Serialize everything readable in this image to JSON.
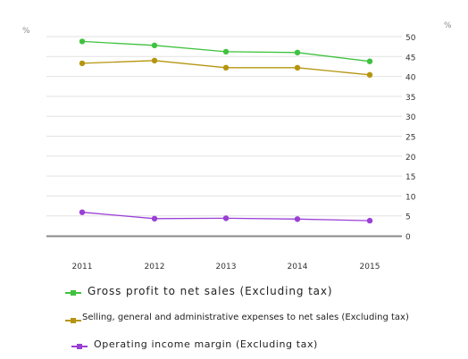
{
  "chart_data": {
    "type": "line",
    "x": [
      "2011",
      "2012",
      "2013",
      "2014",
      "2015"
    ],
    "y_unit_left": "%",
    "y_unit_right": "%",
    "ylim": [
      0,
      50
    ],
    "yticks": [
      0,
      5,
      10,
      15,
      20,
      25,
      30,
      35,
      40,
      45,
      50
    ],
    "y_axis_side": "right",
    "grid": true,
    "legend_position": "bottom",
    "series": [
      {
        "name": "Gross profit to net sales (Excluding tax)",
        "color": "#3fc23f",
        "values": [
          48.8,
          47.8,
          46.2,
          46.0,
          43.8
        ]
      },
      {
        "name": "Selling, general and administrative expenses to net sales (Excluding tax)",
        "color": "#b5950f",
        "values": [
          43.3,
          44.0,
          42.2,
          42.2,
          40.4
        ]
      },
      {
        "name": "Operating income margin (Excluding tax)",
        "color": "#9a3fd6",
        "values": [
          5.9,
          4.3,
          4.4,
          4.2,
          3.8
        ]
      }
    ]
  }
}
